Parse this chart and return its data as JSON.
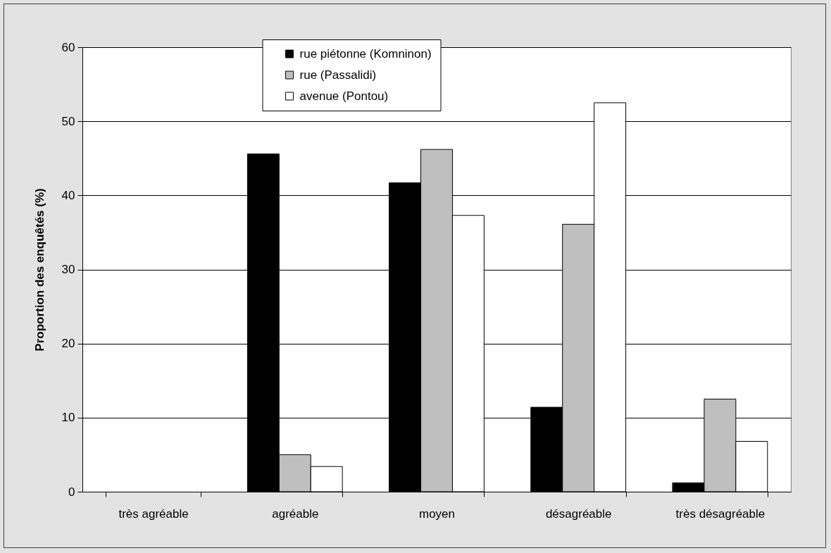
{
  "chart_data": {
    "type": "bar",
    "ylabel": "Proportion des enquêtés (%)",
    "categories": [
      "très agréable",
      "agréable",
      "moyen",
      "désagréable",
      "très désagréable"
    ],
    "series": [
      {
        "name": "rue piétonne (Komninon)",
        "color": "#000000",
        "values": [
          null,
          45.6,
          41.7,
          11.4,
          1.2
        ]
      },
      {
        "name": "rue (Passalidi)",
        "color": "#bfbfbf",
        "values": [
          null,
          5.0,
          46.2,
          36.1,
          12.5
        ]
      },
      {
        "name": "avenue (Pontou)",
        "color": "#ffffff",
        "values": [
          null,
          3.4,
          37.3,
          52.5,
          6.8
        ]
      }
    ],
    "ylim": [
      0,
      60
    ],
    "yticks": [
      0,
      10,
      20,
      30,
      40,
      50,
      60
    ],
    "grid": "y",
    "legend": "top"
  }
}
